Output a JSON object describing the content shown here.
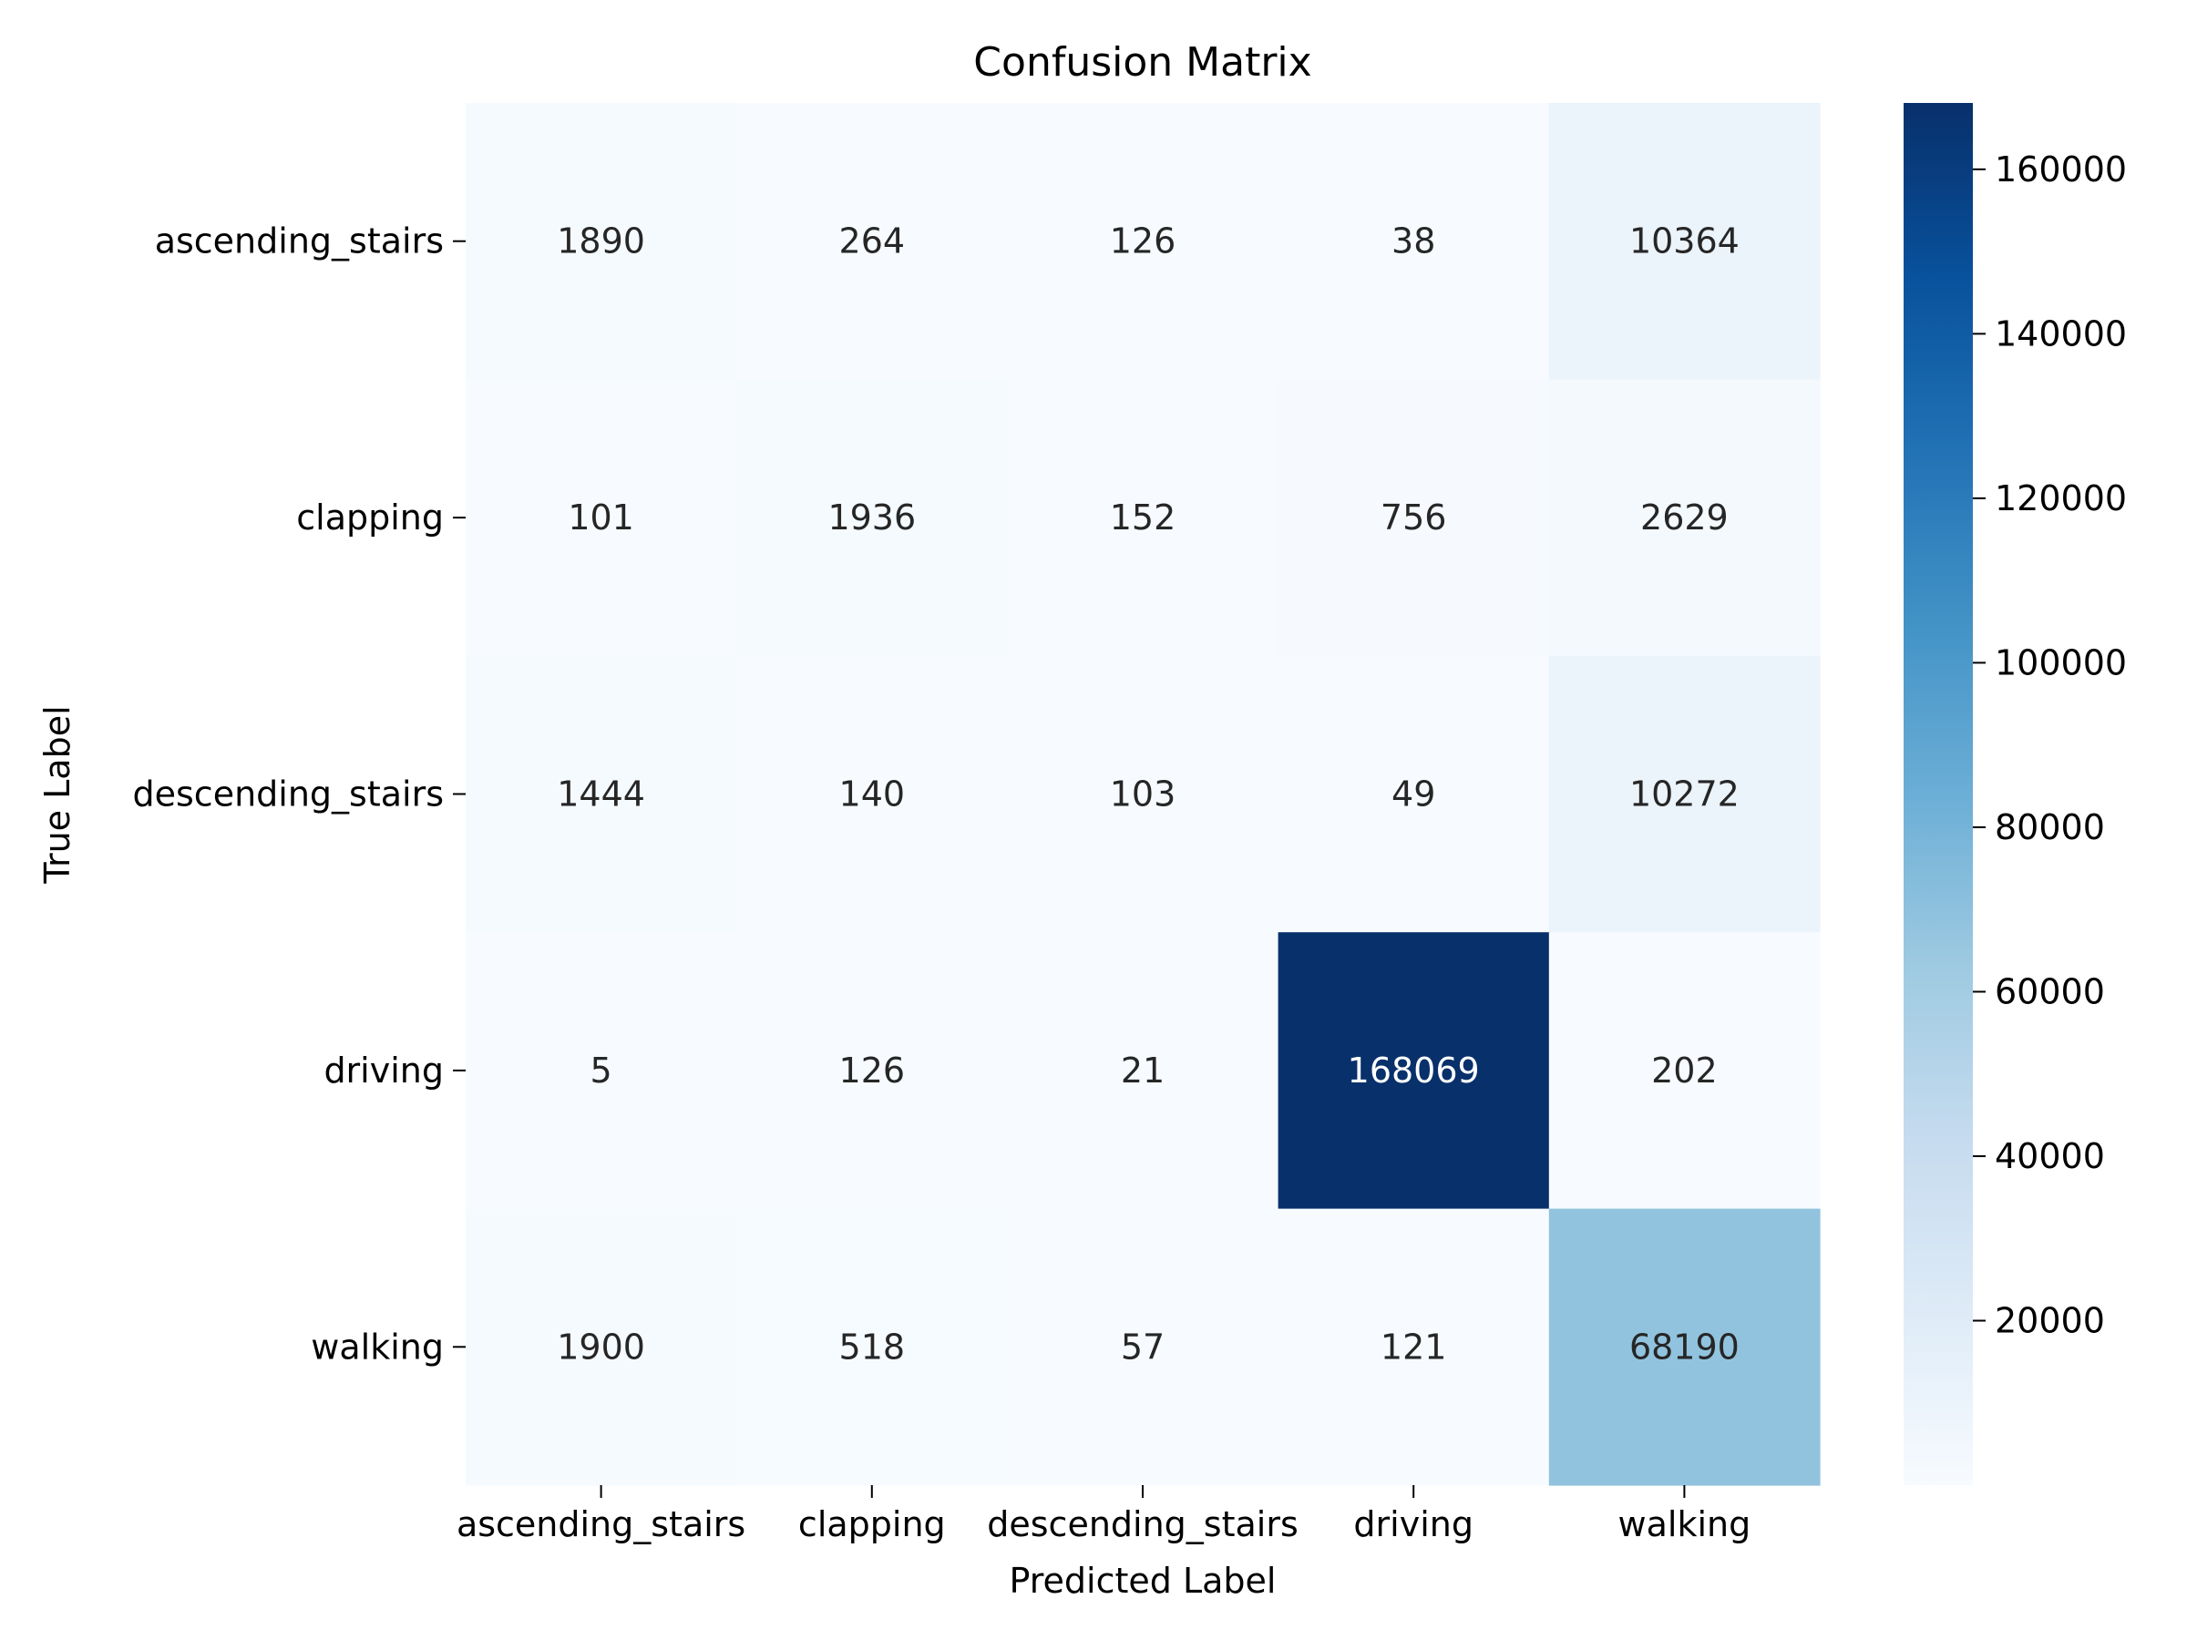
{
  "chart_data": {
    "type": "heatmap",
    "title": "Confusion Matrix",
    "xlabel": "Predicted Label",
    "ylabel": "True Label",
    "x_categories": [
      "ascending_stairs",
      "clapping",
      "descending_stairs",
      "driving",
      "walking"
    ],
    "y_categories": [
      "ascending_stairs",
      "clapping",
      "descending_stairs",
      "driving",
      "walking"
    ],
    "values": [
      [
        1890,
        264,
        126,
        38,
        10364
      ],
      [
        101,
        1936,
        152,
        756,
        2629
      ],
      [
        1444,
        140,
        103,
        49,
        10272
      ],
      [
        5,
        126,
        21,
        168069,
        202
      ],
      [
        1900,
        518,
        57,
        121,
        68190
      ]
    ],
    "colormap": "Blues",
    "colorbar": {
      "vmin": 5,
      "vmax": 168069,
      "ticks": [
        20000,
        40000,
        60000,
        80000,
        100000,
        120000,
        140000,
        160000
      ]
    },
    "grid": false,
    "colors": {
      "low": "#f7fbff",
      "high": "#08306b",
      "annot_dark": "#262626",
      "annot_light": "#ffffff"
    }
  }
}
